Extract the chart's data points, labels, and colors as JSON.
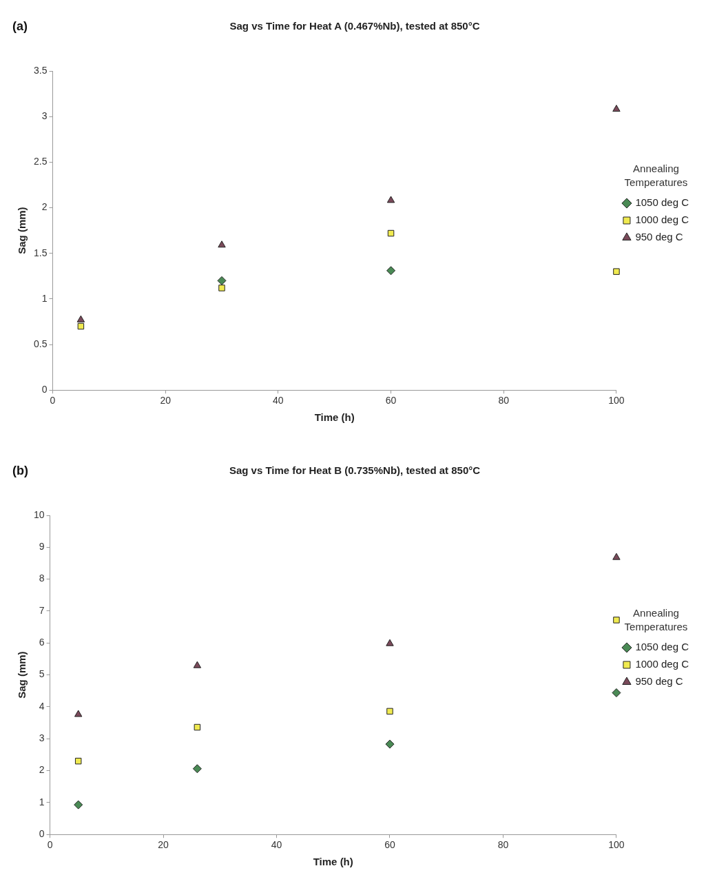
{
  "chart_data": [
    {
      "type": "scatter",
      "title": "Sag vs Time for Heat A (0.467%Nb), tested at 850°C",
      "xlabel": "Time (h)",
      "ylabel": "Sag (mm)",
      "legend_title": "Annealing Temperatures",
      "legend": "right",
      "annotations": [
        "(a)"
      ],
      "grid": false,
      "x": [
        5,
        30,
        60,
        100
      ],
      "xlim": [
        0,
        100
      ],
      "xticks": [
        0,
        20,
        40,
        60,
        80,
        100
      ],
      "ylim": [
        0,
        3.5
      ],
      "yticks": [
        0,
        0.5,
        1,
        1.5,
        2,
        2.5,
        3,
        3.5
      ],
      "series": [
        {
          "name": "1050 deg C",
          "color": "#4a8a55",
          "marker": "diamond",
          "values": [
            null,
            1.2,
            1.31,
            null
          ]
        },
        {
          "name": "1000 deg C",
          "color": "#f0ea50",
          "marker": "square",
          "values": [
            0.7,
            1.12,
            1.72,
            1.3
          ]
        },
        {
          "name": "950 deg C",
          "color": "#7a4a5a",
          "marker": "triangle",
          "values": [
            0.77,
            1.59,
            2.08,
            3.08
          ]
        }
      ]
    },
    {
      "type": "scatter",
      "title": "Sag vs Time for Heat B (0.735%Nb), tested at 850°C",
      "xlabel": "Time (h)",
      "ylabel": "Sag (mm)",
      "legend_title": "Annealing Temperatures",
      "legend": "right",
      "annotations": [
        "(b)"
      ],
      "grid": false,
      "x": [
        5,
        26,
        60,
        100
      ],
      "xlim": [
        0,
        100
      ],
      "xticks": [
        0,
        20,
        40,
        60,
        80,
        100
      ],
      "ylim": [
        0,
        10
      ],
      "yticks": [
        0,
        1,
        2,
        3,
        4,
        5,
        6,
        7,
        8,
        9,
        10
      ],
      "series": [
        {
          "name": "1050 deg C",
          "color": "#4a8a55",
          "marker": "diamond",
          "values": [
            0.93,
            2.06,
            2.83,
            4.44
          ]
        },
        {
          "name": "1000 deg C",
          "color": "#f0ea50",
          "marker": "square",
          "values": [
            2.3,
            3.36,
            3.86,
            6.72
          ]
        },
        {
          "name": "950 deg C",
          "color": "#7a4a5a",
          "marker": "triangle",
          "values": [
            3.76,
            5.29,
            5.98,
            8.68
          ]
        }
      ]
    }
  ]
}
